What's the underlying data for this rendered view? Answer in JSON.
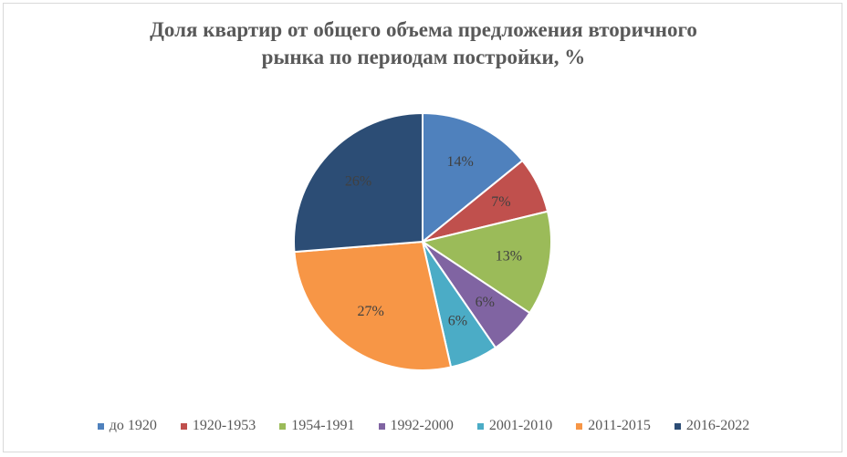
{
  "chart_data": {
    "type": "pie",
    "title_lines": [
      "Доля квартир от общего объема предложения вторичного",
      "рынка по периодам постройки, %"
    ],
    "categories": [
      "до 1920",
      "1920-1953",
      "1954-1991",
      "1992-2000",
      "2001-2010",
      "2011-2015",
      "2016-2022"
    ],
    "values": [
      14,
      7,
      13,
      6,
      6,
      27,
      26
    ],
    "data_labels": [
      "14%",
      "7%",
      "13%",
      "6%",
      "6%",
      "27%",
      "26%"
    ],
    "colors": [
      "#4f81bd",
      "#c0504d",
      "#9bbb59",
      "#8064a2",
      "#4bacc6",
      "#f79646",
      "#2c4d75"
    ],
    "legend_position": "bottom"
  }
}
